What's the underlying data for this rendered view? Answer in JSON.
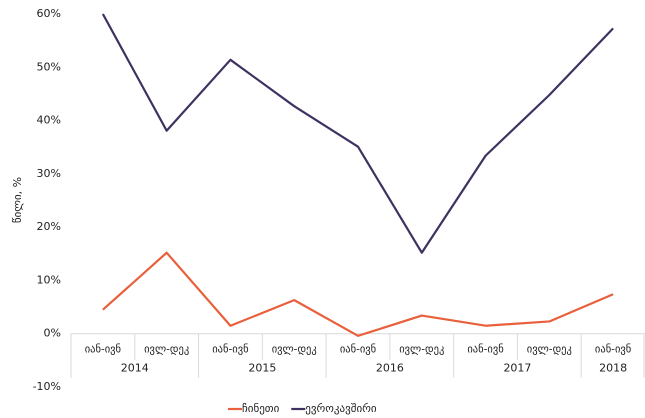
{
  "chart_data": {
    "type": "line",
    "y_label": "წილი, %",
    "categories": [
      "იან-ივნ",
      "ივლ-დეკ",
      "იან-ივნ",
      "ივლ-დეკ",
      "იან-ივნ",
      "ივლ-დეკ",
      "იან-ივნ",
      "ივლ-დეკ",
      "იან-ივნ"
    ],
    "category_groups": [
      "2014",
      null,
      "2015",
      null,
      "2016",
      null,
      "2017",
      null,
      "2018"
    ],
    "series": [
      {
        "name": "ჩინეთი",
        "color": "#e8603c",
        "values": [
          4.5,
          15.2,
          1.5,
          6.3,
          -0.4,
          3.4,
          1.5,
          2.3,
          7.4
        ]
      },
      {
        "name": "ევროკავშირი",
        "color": "#3f3160",
        "values": [
          60,
          38.1,
          51.4,
          42.7,
          35.1,
          15.2,
          33.4,
          44.8,
          57.3
        ]
      }
    ],
    "ylim": [
      -10,
      60
    ],
    "yticks": [
      {
        "value": -10,
        "label": "-10%"
      },
      {
        "value": 0,
        "label": "0%"
      },
      {
        "value": 10,
        "label": "10%"
      },
      {
        "value": 20,
        "label": "20%"
      },
      {
        "value": 30,
        "label": "30%"
      },
      {
        "value": 40,
        "label": "40%"
      },
      {
        "value": 50,
        "label": "50%"
      },
      {
        "value": 60,
        "label": "60%"
      }
    ],
    "legend": "bottom"
  }
}
